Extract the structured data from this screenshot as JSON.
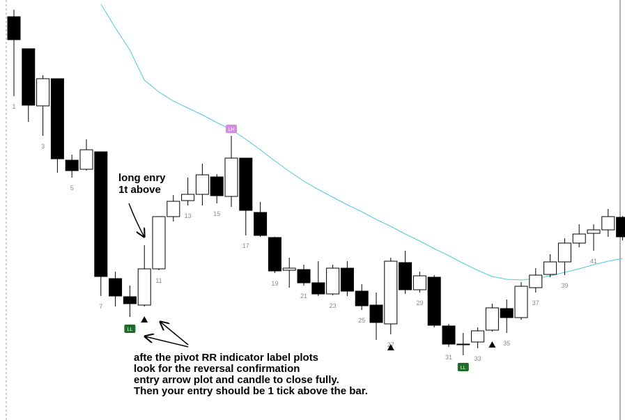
{
  "chart_data": {
    "type": "candlestick",
    "categories": [
      "1",
      null,
      "3",
      null,
      "5",
      null,
      "7",
      null,
      "9",
      null,
      "11",
      null,
      "13",
      null,
      "15",
      null,
      "17",
      null,
      "19",
      null,
      "21",
      null,
      "23",
      null,
      "25",
      null,
      "27",
      null,
      "29",
      null,
      "31",
      null,
      "33",
      null,
      "35",
      null,
      "37",
      null,
      "39",
      null,
      "41",
      null,
      null
    ],
    "open": [
      576,
      530,
      448,
      487,
      370,
      357,
      382,
      200,
      174,
      162,
      214,
      289,
      312,
      321,
      346,
      318,
      373,
      295,
      259,
      212,
      213,
      194,
      178,
      215,
      182,
      162,
      135,
      223,
      184,
      202,
      132,
      106,
      109,
      126,
      157,
      144,
      187,
      206,
      224,
      251,
      265,
      270,
      288
    ],
    "high": [
      586,
      530,
      492,
      487,
      378,
      400,
      382,
      210,
      190,
      248,
      289,
      320,
      345,
      365,
      350,
      405,
      373,
      310,
      260,
      230,
      220,
      225,
      220,
      225,
      192,
      180,
      230,
      240,
      210,
      205,
      135,
      122,
      130,
      164,
      170,
      195,
      215,
      235,
      258,
      278,
      278,
      300,
      290
    ],
    "low": [
      462,
      425,
      405,
      352,
      345,
      355,
      175,
      160,
      145,
      160,
      212,
      282,
      305,
      305,
      308,
      303,
      262,
      260,
      208,
      187,
      190,
      175,
      176,
      175,
      155,
      112,
      120,
      178,
      180,
      130,
      102,
      90,
      100,
      124,
      122,
      141,
      180,
      202,
      205,
      245,
      240,
      260,
      255
    ],
    "close": [
      543,
      449,
      487,
      372,
      355,
      385,
      203,
      175,
      164,
      214,
      289,
      311,
      321,
      349,
      319,
      373,
      298,
      262,
      211,
      215,
      194,
      178,
      215,
      182,
      161,
      137,
      225,
      184,
      204,
      133,
      106,
      106,
      125,
      158,
      144,
      189,
      205,
      224,
      251,
      264,
      270,
      289,
      260
    ],
    "up_color": "#ffffff",
    "down_color": "#000000",
    "ema": {
      "color": "#4cc9dc",
      "values": [
        null,
        null,
        null,
        null,
        null,
        null,
        594,
        560,
        528,
        485,
        468,
        455,
        445,
        435,
        424,
        414,
        400,
        385,
        369,
        354,
        340,
        328,
        317,
        306,
        296,
        285,
        275,
        264,
        254,
        243,
        233,
        222,
        212,
        203,
        199,
        198,
        200,
        204,
        209,
        214,
        220,
        225,
        229
      ]
    },
    "pivots": [
      {
        "index": 15,
        "label": "LH",
        "color": "#d38ee0"
      },
      {
        "index": 8,
        "label": "LL",
        "color": "#1e6b2a"
      },
      {
        "index": 31,
        "label": "LL",
        "color": "#1e6b2a"
      }
    ],
    "entry_arrows": [
      9,
      26,
      33
    ],
    "annotations": [
      "long enry",
      "1t above",
      "afte the pivot RR indicator label plots",
      "look for the reversal confirmation",
      "entry arrow plot and candle to close fully.",
      "Then your entry should be 1 tick above the bar."
    ],
    "ylim": [
      0,
      600
    ]
  }
}
